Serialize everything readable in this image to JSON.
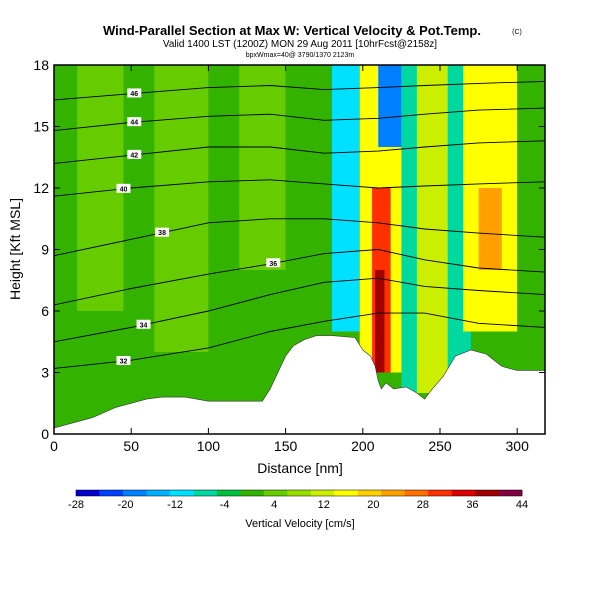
{
  "chart_data": {
    "type": "heatmap",
    "title": "Wind-Parallel Section at Max W: Vertical Velocity & Pot.Temp.",
    "title_mark": "(C)",
    "subtitle": "Valid 1400 LST (1200Z) MON 29 Aug 2011 [10hrFcst@2158z]",
    "subsubtitle": "bpxWmax=40@ 3790/1370 2123m",
    "xlabel": "Distance [nm]",
    "ylabel": "Height [Kft MSL]",
    "xlim": [
      0,
      318
    ],
    "ylim": [
      0,
      18
    ],
    "xticks": [
      "0",
      "50",
      "100",
      "150",
      "200",
      "250",
      "300"
    ],
    "xtick_values": [
      0,
      50,
      100,
      150,
      200,
      250,
      300
    ],
    "yticks": [
      "0",
      "3",
      "6",
      "9",
      "12",
      "15",
      "18"
    ],
    "ytick_values": [
      0,
      3,
      6,
      9,
      12,
      15,
      18
    ],
    "colorbar_label": "Vertical Velocity [cm/s]",
    "colorbar_ticks": [
      "-28",
      "-20",
      "-12",
      "-4",
      "4",
      "12",
      "20",
      "28",
      "36",
      "44"
    ],
    "colorbar_levels": [
      -28,
      -24,
      -20,
      -16,
      -12,
      -8,
      -4,
      0,
      4,
      8,
      12,
      16,
      20,
      24,
      28,
      32,
      36,
      40,
      44
    ],
    "colorbar_colors": [
      "#0000cc",
      "#0040ff",
      "#0080ff",
      "#00b0ff",
      "#00e0ff",
      "#00d8a0",
      "#00c040",
      "#33b300",
      "#66cc00",
      "#99dd00",
      "#ccee00",
      "#ffff00",
      "#ffd000",
      "#ffa000",
      "#ff7000",
      "#ff3000",
      "#dd0000",
      "#a00000",
      "#800040"
    ],
    "terrain_profile": {
      "x": [
        0,
        10,
        25,
        40,
        60,
        70,
        85,
        100,
        125,
        135,
        140,
        145,
        150,
        155,
        162,
        170,
        180,
        195,
        200,
        205,
        208,
        210,
        212,
        215,
        220,
        228,
        235,
        240,
        245,
        252,
        260,
        270,
        280,
        290,
        300,
        318
      ],
      "h": [
        0.3,
        0.5,
        0.8,
        1.3,
        1.7,
        1.8,
        1.8,
        1.6,
        1.6,
        1.6,
        2.2,
        3.0,
        3.8,
        4.3,
        4.6,
        4.8,
        4.8,
        4.7,
        4.1,
        3.8,
        3.3,
        2.6,
        2.2,
        2.5,
        2.2,
        2.3,
        2.0,
        1.7,
        2.2,
        2.8,
        3.8,
        4.1,
        3.9,
        3.3,
        3.1,
        3.1
      ]
    },
    "wfield_bands": [
      {
        "x0": 0,
        "x1": 318,
        "y0": 0,
        "y1": 18,
        "w": 2
      },
      {
        "x0": 0,
        "x1": 40,
        "y0": 0,
        "y1": 6,
        "w": 0
      },
      {
        "x0": 15,
        "x1": 45,
        "y0": 6,
        "y1": 18,
        "w": 5
      },
      {
        "x0": 65,
        "x1": 100,
        "y0": 4,
        "y1": 18,
        "w": 5
      },
      {
        "x0": 100,
        "x1": 140,
        "y0": 2,
        "y1": 18,
        "w": 0
      },
      {
        "x0": 120,
        "x1": 150,
        "y0": 8,
        "y1": 18,
        "w": 6
      },
      {
        "x0": 150,
        "x1": 180,
        "y0": 4,
        "y1": 18,
        "w": 1
      },
      {
        "x0": 180,
        "x1": 198,
        "y0": 5,
        "y1": 18,
        "w": -9
      },
      {
        "x0": 198,
        "x1": 228,
        "y0": 3,
        "y1": 18,
        "w": 18
      },
      {
        "x0": 206,
        "x1": 218,
        "y0": 3,
        "y1": 12,
        "w": 34
      },
      {
        "x0": 208,
        "x1": 214,
        "y0": 3,
        "y1": 8,
        "w": 40
      },
      {
        "x0": 225,
        "x1": 245,
        "y0": 2,
        "y1": 18,
        "w": -8
      },
      {
        "x0": 210,
        "x1": 225,
        "y0": 14,
        "y1": 18,
        "w": -20
      },
      {
        "x0": 235,
        "x1": 260,
        "y0": 2,
        "y1": 18,
        "w": 12
      },
      {
        "x0": 255,
        "x1": 270,
        "y0": 3,
        "y1": 18,
        "w": -6
      },
      {
        "x0": 265,
        "x1": 300,
        "y0": 5,
        "y1": 18,
        "w": 16
      },
      {
        "x0": 275,
        "x1": 290,
        "y0": 8,
        "y1": 12,
        "w": 24
      },
      {
        "x0": 300,
        "x1": 318,
        "y0": 3,
        "y1": 18,
        "w": 0
      }
    ],
    "theta_contours": [
      {
        "value": 32,
        "x": [
          0,
          50,
          100,
          140,
          175,
          210,
          240,
          275,
          318
        ],
        "y": [
          3.2,
          3.6,
          4.2,
          5.0,
          5.5,
          5.9,
          5.9,
          5.4,
          5.2
        ],
        "label_x": 45
      },
      {
        "value": 34,
        "x": [
          0,
          50,
          100,
          140,
          175,
          210,
          240,
          275,
          318
        ],
        "y": [
          4.5,
          5.2,
          6.0,
          6.8,
          7.4,
          7.6,
          7.2,
          7.0,
          6.8
        ],
        "label_x": 58
      },
      {
        "value": 36,
        "x": [
          0,
          50,
          100,
          140,
          175,
          210,
          240,
          275,
          318
        ],
        "y": [
          6.3,
          7.1,
          7.8,
          8.3,
          8.8,
          9.0,
          8.5,
          8.1,
          7.9
        ],
        "label_x": 142
      },
      {
        "value": 38,
        "x": [
          0,
          50,
          100,
          140,
          175,
          210,
          240,
          275,
          318
        ],
        "y": [
          8.7,
          9.5,
          10.3,
          10.5,
          10.5,
          10.3,
          10.0,
          9.8,
          9.6
        ],
        "label_x": 70
      },
      {
        "value": 40,
        "x": [
          0,
          50,
          100,
          140,
          175,
          210,
          240,
          275,
          318
        ],
        "y": [
          11.6,
          12.0,
          12.3,
          12.4,
          12.2,
          12.0,
          12.1,
          12.2,
          12.3
        ],
        "label_x": 45
      },
      {
        "value": 42,
        "x": [
          0,
          50,
          100,
          140,
          175,
          210,
          240,
          275,
          318
        ],
        "y": [
          13.2,
          13.6,
          14.0,
          14.0,
          13.7,
          13.8,
          14.0,
          14.2,
          14.3
        ],
        "label_x": 52
      },
      {
        "value": 44,
        "x": [
          0,
          50,
          100,
          140,
          175,
          210,
          240,
          275,
          318
        ],
        "y": [
          14.8,
          15.2,
          15.5,
          15.6,
          15.3,
          15.4,
          15.6,
          15.8,
          15.9
        ],
        "label_x": 52
      },
      {
        "value": 46,
        "x": [
          0,
          50,
          100,
          140,
          175,
          210,
          240,
          275,
          318
        ],
        "y": [
          16.3,
          16.6,
          16.9,
          17.0,
          16.8,
          16.9,
          17.0,
          17.1,
          17.2
        ],
        "label_x": 52
      }
    ]
  }
}
